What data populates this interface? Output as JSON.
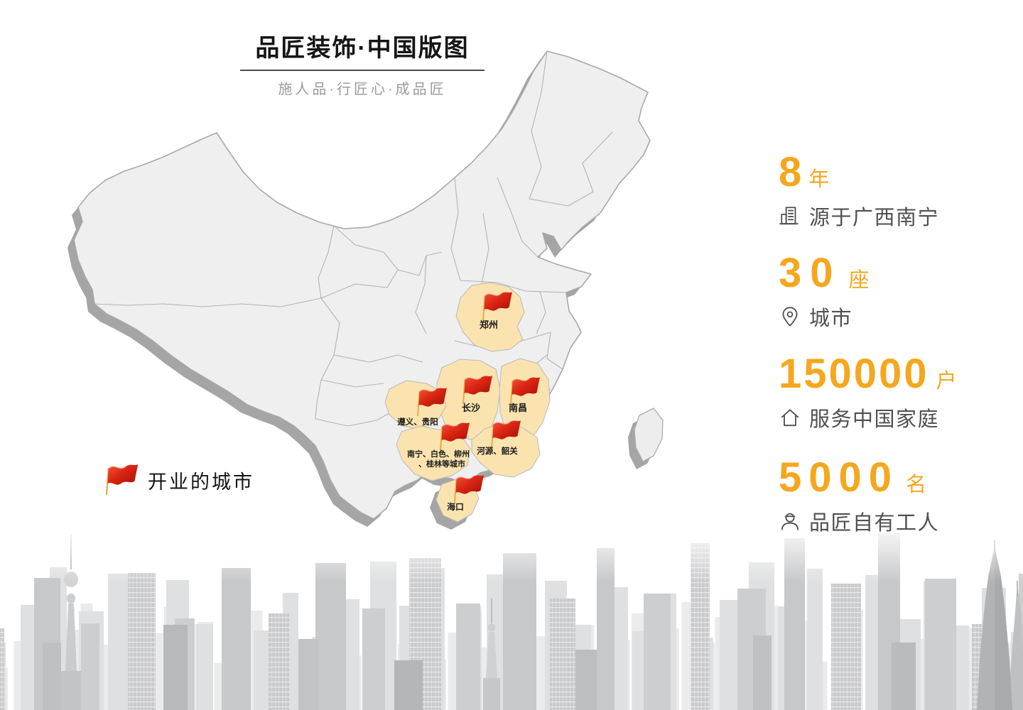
{
  "header": {
    "title": "品匠装饰·中国版图",
    "subtitle": "施人品·行匠心·成品匠"
  },
  "legend": {
    "icon": "red-flag-icon",
    "label": "开业的城市"
  },
  "map": {
    "name": "china-map",
    "highlight_color": "#FBE3AF",
    "regions": [
      {
        "id": "henan",
        "label": "郑州"
      },
      {
        "id": "guizhou",
        "label": "遵义、贵阳"
      },
      {
        "id": "hunan",
        "label": "长沙"
      },
      {
        "id": "jiangxi",
        "label": "南昌"
      },
      {
        "id": "guangxi",
        "label": "南宁、白色、柳州",
        "label2": "、桂林等城市"
      },
      {
        "id": "guangdong",
        "label": "河源、韶关"
      },
      {
        "id": "hainan",
        "label": "海口"
      }
    ]
  },
  "stats": [
    {
      "value": "8",
      "unit": "年",
      "icon": "building-icon",
      "caption": "源于广西南宁"
    },
    {
      "value": "30",
      "unit": "座",
      "icon": "location-pin-icon",
      "caption": "城市"
    },
    {
      "value": "150000",
      "unit": "户",
      "icon": "home-icon",
      "caption": "服务中国家庭"
    },
    {
      "value": "5000",
      "unit": "名",
      "icon": "worker-icon",
      "caption": "品匠自有工人"
    }
  ],
  "colors": {
    "accent": "#F5A71E",
    "caption_gray": "#4F5052",
    "map_fill": "#EFEFEF",
    "map_border": "#A8A8A8",
    "map_shadow": "#A5A5A5",
    "province_highlight": "#FBE3AF",
    "flag_red": "#DA2613"
  }
}
